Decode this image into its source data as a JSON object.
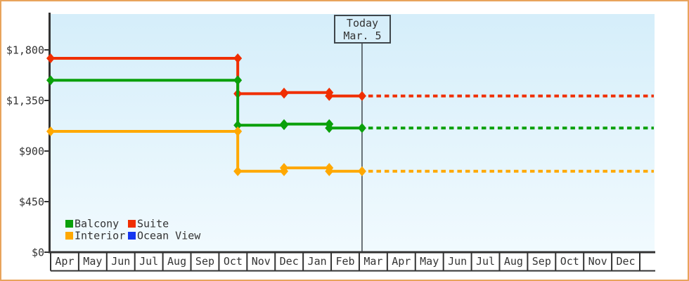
{
  "chart_data": {
    "type": "line",
    "description": "Cabin price history per category (step lines), dashed projection after today",
    "y_axis": {
      "ticks": [
        {
          "value": 1800,
          "label": "$1,800"
        },
        {
          "value": 1350,
          "label": "$1,350"
        },
        {
          "value": 900,
          "label": "$900"
        },
        {
          "value": 450,
          "label": "$450"
        },
        {
          "value": 0,
          "label": "$0"
        }
      ],
      "ylim": [
        0,
        2120
      ],
      "grid": false
    },
    "x_axis": {
      "month_labels": [
        "Apr",
        "May",
        "Jun",
        "Jul",
        "Aug",
        "Sep",
        "Oct",
        "Nov",
        "Dec",
        "Jan",
        "Feb",
        "Mar",
        "Apr",
        "May",
        "Jun",
        "Jul",
        "Aug",
        "Sep",
        "Oct",
        "Nov",
        "Dec"
      ]
    },
    "today_marker": {
      "line1": "Today",
      "line2": "Mar. 5",
      "t": 11.1
    },
    "projection_end_t": 21.5,
    "series": [
      {
        "id": "suite",
        "name": "Suite",
        "color": "#f02e00",
        "price_history": [
          {
            "t": 0.0,
            "price": 1725
          },
          {
            "t": 6.67,
            "price": 1410
          },
          {
            "t": 8.32,
            "price": 1420
          },
          {
            "t": 9.93,
            "price": 1390
          }
        ],
        "current_price": 1390
      },
      {
        "id": "balcony",
        "name": "Balcony",
        "color": "#0aa00a",
        "price_history": [
          {
            "t": 0.0,
            "price": 1530
          },
          {
            "t": 6.67,
            "price": 1130
          },
          {
            "t": 8.32,
            "price": 1140
          },
          {
            "t": 9.93,
            "price": 1105
          }
        ],
        "current_price": 1105
      },
      {
        "id": "interior",
        "name": "Interior",
        "color": "#ffa800",
        "price_history": [
          {
            "t": 0.0,
            "price": 1075
          },
          {
            "t": 6.67,
            "price": 720
          },
          {
            "t": 8.32,
            "price": 750
          },
          {
            "t": 9.93,
            "price": 720
          }
        ],
        "current_price": 720
      },
      {
        "id": "ocean-view",
        "name": "Ocean View",
        "color": "#1536f0",
        "price_history": [],
        "current_price": null
      }
    ],
    "legend": {
      "items": [
        {
          "series_id": "balcony",
          "label": "Balcony",
          "color": "#0aa00a"
        },
        {
          "series_id": "suite",
          "label": "Suite",
          "color": "#f02e00"
        },
        {
          "series_id": "interior",
          "label": "Interior",
          "color": "#ffa800"
        },
        {
          "series_id": "ocean-view",
          "label": "Ocean View",
          "color": "#1536f0"
        }
      ]
    },
    "colors": {
      "plot_bg_top": "#d5eefa",
      "plot_bg_bottom": "#f1fafe",
      "axis": "#333333",
      "frame_border": "#e8a45c",
      "today_line": "#3f464b"
    }
  }
}
